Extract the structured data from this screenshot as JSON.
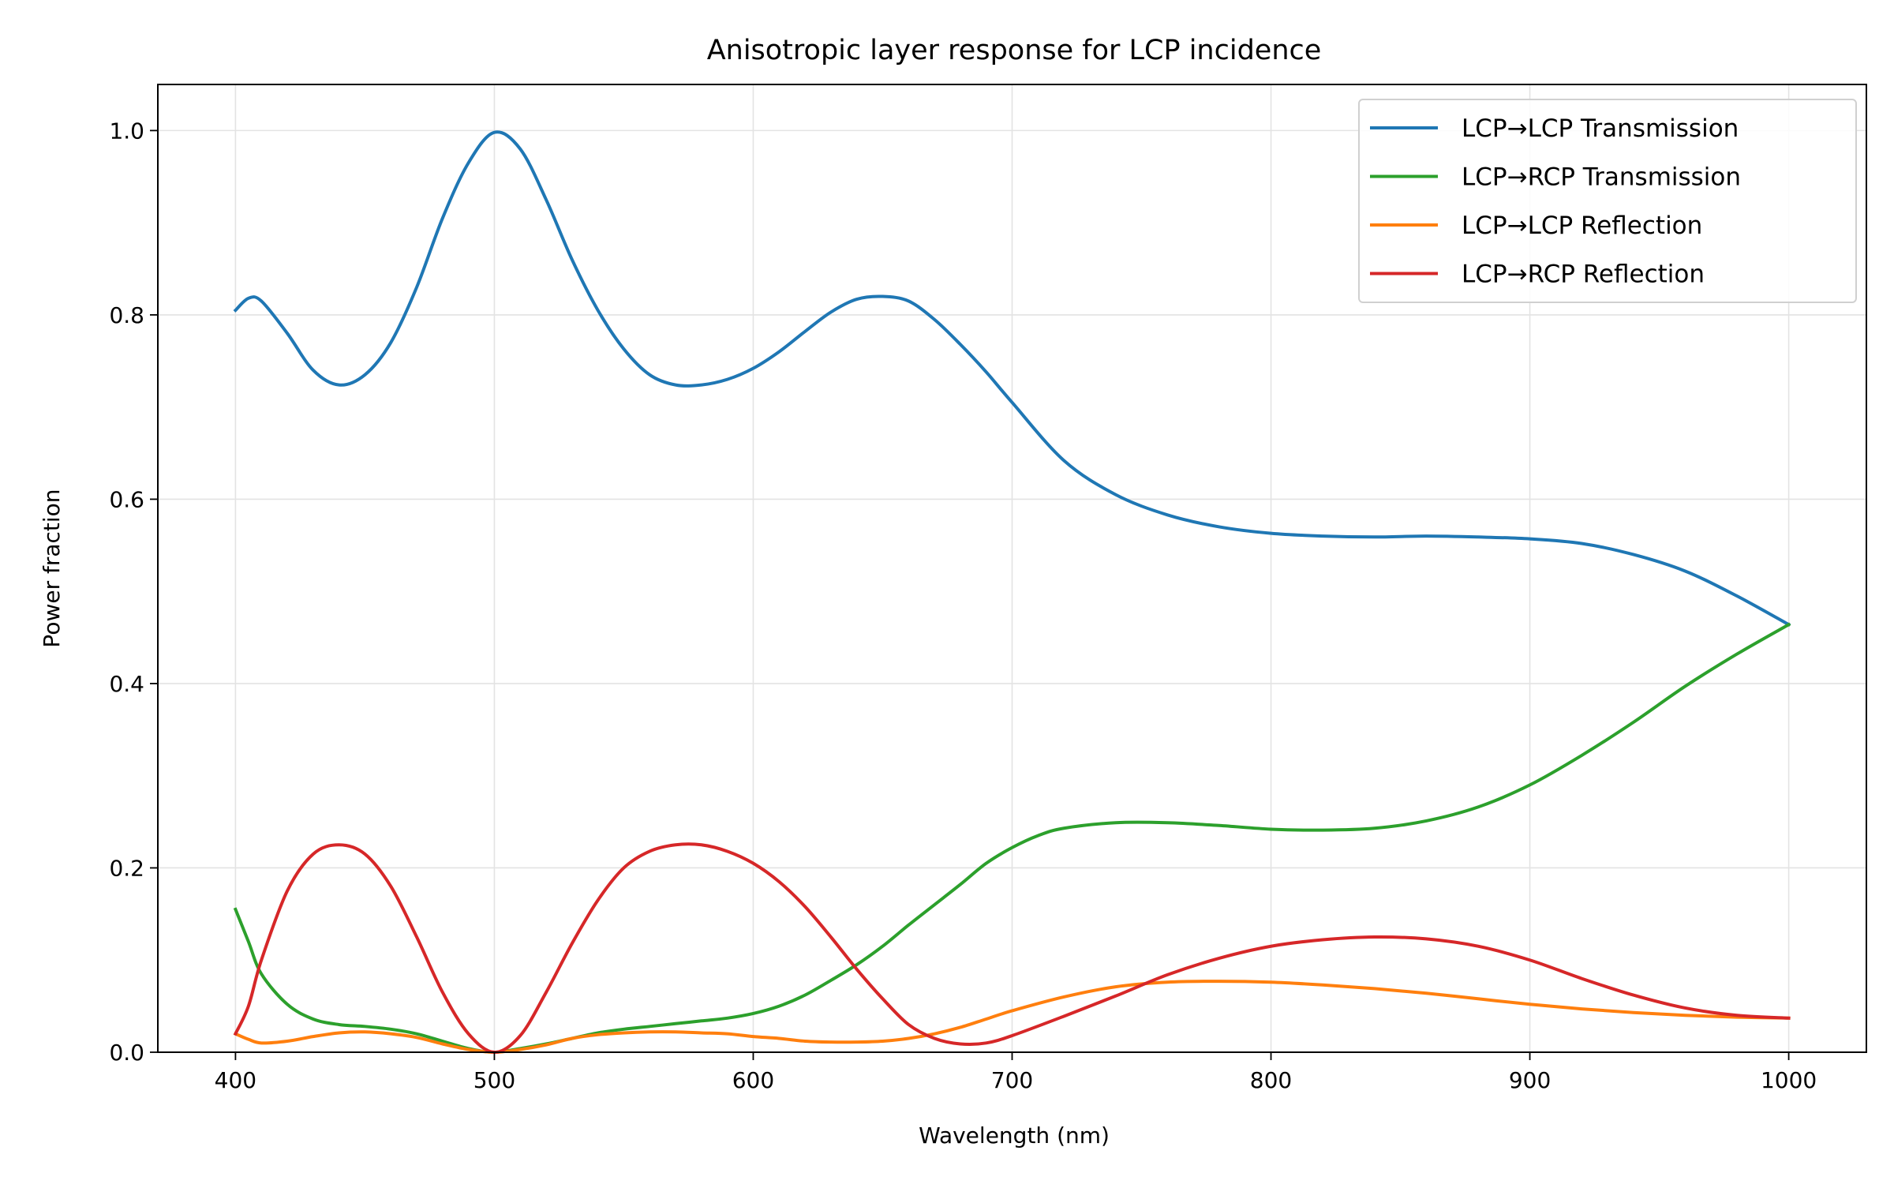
{
  "chart_data": {
    "type": "line",
    "title": "Anisotropic layer response for LCP incidence",
    "xlabel": "Wavelength (nm)",
    "ylabel": "Power fraction",
    "xlim": [
      370,
      1030
    ],
    "ylim": [
      0.0,
      1.05
    ],
    "xticks": [
      400,
      500,
      600,
      700,
      800,
      900,
      1000
    ],
    "xtick_labels": [
      "400",
      "500",
      "600",
      "700",
      "800",
      "900",
      "1000"
    ],
    "yticks": [
      0.0,
      0.2,
      0.4,
      0.6,
      0.8,
      1.0
    ],
    "ytick_labels": [
      "0.0",
      "0.2",
      "0.4",
      "0.6",
      "0.8",
      "1.0"
    ],
    "grid": true,
    "legend_position": "top-right",
    "series": [
      {
        "name": "LCP→LCP Transmission",
        "color": "#1f77b4",
        "points": [
          [
            400,
            0.805
          ],
          [
            405,
            0.818
          ],
          [
            410,
            0.815
          ],
          [
            420,
            0.78
          ],
          [
            430,
            0.74
          ],
          [
            440,
            0.724
          ],
          [
            450,
            0.735
          ],
          [
            460,
            0.77
          ],
          [
            470,
            0.83
          ],
          [
            480,
            0.905
          ],
          [
            490,
            0.965
          ],
          [
            500,
            0.998
          ],
          [
            510,
            0.98
          ],
          [
            520,
            0.925
          ],
          [
            530,
            0.86
          ],
          [
            540,
            0.805
          ],
          [
            550,
            0.763
          ],
          [
            560,
            0.735
          ],
          [
            570,
            0.724
          ],
          [
            580,
            0.724
          ],
          [
            590,
            0.73
          ],
          [
            600,
            0.742
          ],
          [
            610,
            0.76
          ],
          [
            620,
            0.782
          ],
          [
            630,
            0.803
          ],
          [
            640,
            0.817
          ],
          [
            650,
            0.82
          ],
          [
            660,
            0.815
          ],
          [
            670,
            0.795
          ],
          [
            680,
            0.768
          ],
          [
            690,
            0.738
          ],
          [
            700,
            0.705
          ],
          [
            720,
            0.642
          ],
          [
            740,
            0.605
          ],
          [
            760,
            0.583
          ],
          [
            780,
            0.57
          ],
          [
            800,
            0.563
          ],
          [
            820,
            0.56
          ],
          [
            840,
            0.559
          ],
          [
            860,
            0.56
          ],
          [
            880,
            0.559
          ],
          [
            900,
            0.557
          ],
          [
            920,
            0.552
          ],
          [
            940,
            0.54
          ],
          [
            960,
            0.522
          ],
          [
            980,
            0.495
          ],
          [
            1000,
            0.464
          ]
        ]
      },
      {
        "name": "LCP→RCP Transmission",
        "color": "#2ca02c",
        "points": [
          [
            400,
            0.155
          ],
          [
            405,
            0.12
          ],
          [
            410,
            0.085
          ],
          [
            420,
            0.052
          ],
          [
            430,
            0.036
          ],
          [
            440,
            0.03
          ],
          [
            450,
            0.028
          ],
          [
            460,
            0.025
          ],
          [
            470,
            0.02
          ],
          [
            480,
            0.012
          ],
          [
            490,
            0.004
          ],
          [
            500,
            0.0
          ],
          [
            510,
            0.004
          ],
          [
            520,
            0.009
          ],
          [
            530,
            0.015
          ],
          [
            540,
            0.021
          ],
          [
            550,
            0.025
          ],
          [
            560,
            0.028
          ],
          [
            570,
            0.031
          ],
          [
            580,
            0.034
          ],
          [
            590,
            0.037
          ],
          [
            600,
            0.042
          ],
          [
            610,
            0.05
          ],
          [
            620,
            0.062
          ],
          [
            630,
            0.078
          ],
          [
            640,
            0.095
          ],
          [
            650,
            0.115
          ],
          [
            660,
            0.138
          ],
          [
            670,
            0.16
          ],
          [
            680,
            0.182
          ],
          [
            690,
            0.205
          ],
          [
            700,
            0.222
          ],
          [
            710,
            0.235
          ],
          [
            720,
            0.243
          ],
          [
            740,
            0.249
          ],
          [
            760,
            0.249
          ],
          [
            780,
            0.246
          ],
          [
            800,
            0.242
          ],
          [
            820,
            0.241
          ],
          [
            840,
            0.243
          ],
          [
            860,
            0.251
          ],
          [
            880,
            0.266
          ],
          [
            900,
            0.29
          ],
          [
            920,
            0.322
          ],
          [
            940,
            0.358
          ],
          [
            960,
            0.397
          ],
          [
            980,
            0.432
          ],
          [
            1000,
            0.464
          ]
        ]
      },
      {
        "name": "LCP→LCP Reflection",
        "color": "#ff7f0e",
        "points": [
          [
            400,
            0.02
          ],
          [
            405,
            0.014
          ],
          [
            410,
            0.01
          ],
          [
            420,
            0.012
          ],
          [
            430,
            0.017
          ],
          [
            440,
            0.021
          ],
          [
            450,
            0.022
          ],
          [
            460,
            0.02
          ],
          [
            470,
            0.016
          ],
          [
            480,
            0.009
          ],
          [
            490,
            0.003
          ],
          [
            500,
            0.0
          ],
          [
            510,
            0.003
          ],
          [
            520,
            0.008
          ],
          [
            530,
            0.015
          ],
          [
            540,
            0.019
          ],
          [
            550,
            0.021
          ],
          [
            560,
            0.022
          ],
          [
            570,
            0.022
          ],
          [
            580,
            0.021
          ],
          [
            590,
            0.02
          ],
          [
            600,
            0.017
          ],
          [
            610,
            0.015
          ],
          [
            620,
            0.012
          ],
          [
            630,
            0.011
          ],
          [
            640,
            0.011
          ],
          [
            650,
            0.012
          ],
          [
            660,
            0.015
          ],
          [
            670,
            0.02
          ],
          [
            680,
            0.027
          ],
          [
            690,
            0.036
          ],
          [
            700,
            0.045
          ],
          [
            720,
            0.06
          ],
          [
            740,
            0.071
          ],
          [
            760,
            0.076
          ],
          [
            780,
            0.077
          ],
          [
            800,
            0.076
          ],
          [
            820,
            0.073
          ],
          [
            840,
            0.069
          ],
          [
            860,
            0.064
          ],
          [
            880,
            0.058
          ],
          [
            900,
            0.052
          ],
          [
            920,
            0.047
          ],
          [
            940,
            0.043
          ],
          [
            960,
            0.04
          ],
          [
            980,
            0.038
          ],
          [
            1000,
            0.037
          ]
        ]
      },
      {
        "name": "LCP→RCP Reflection",
        "color": "#d62728",
        "points": [
          [
            400,
            0.02
          ],
          [
            405,
            0.05
          ],
          [
            410,
            0.1
          ],
          [
            420,
            0.175
          ],
          [
            430,
            0.215
          ],
          [
            440,
            0.225
          ],
          [
            450,
            0.215
          ],
          [
            460,
            0.18
          ],
          [
            470,
            0.125
          ],
          [
            480,
            0.065
          ],
          [
            490,
            0.02
          ],
          [
            500,
            0.0
          ],
          [
            510,
            0.018
          ],
          [
            520,
            0.065
          ],
          [
            530,
            0.118
          ],
          [
            540,
            0.165
          ],
          [
            550,
            0.2
          ],
          [
            560,
            0.218
          ],
          [
            570,
            0.225
          ],
          [
            580,
            0.225
          ],
          [
            590,
            0.218
          ],
          [
            600,
            0.205
          ],
          [
            610,
            0.185
          ],
          [
            620,
            0.158
          ],
          [
            630,
            0.125
          ],
          [
            640,
            0.09
          ],
          [
            650,
            0.058
          ],
          [
            660,
            0.03
          ],
          [
            670,
            0.015
          ],
          [
            680,
            0.009
          ],
          [
            690,
            0.01
          ],
          [
            700,
            0.018
          ],
          [
            720,
            0.039
          ],
          [
            740,
            0.061
          ],
          [
            760,
            0.084
          ],
          [
            780,
            0.102
          ],
          [
            800,
            0.115
          ],
          [
            820,
            0.122
          ],
          [
            840,
            0.125
          ],
          [
            860,
            0.123
          ],
          [
            880,
            0.115
          ],
          [
            900,
            0.1
          ],
          [
            920,
            0.08
          ],
          [
            940,
            0.062
          ],
          [
            960,
            0.048
          ],
          [
            980,
            0.04
          ],
          [
            1000,
            0.037
          ]
        ]
      }
    ]
  }
}
